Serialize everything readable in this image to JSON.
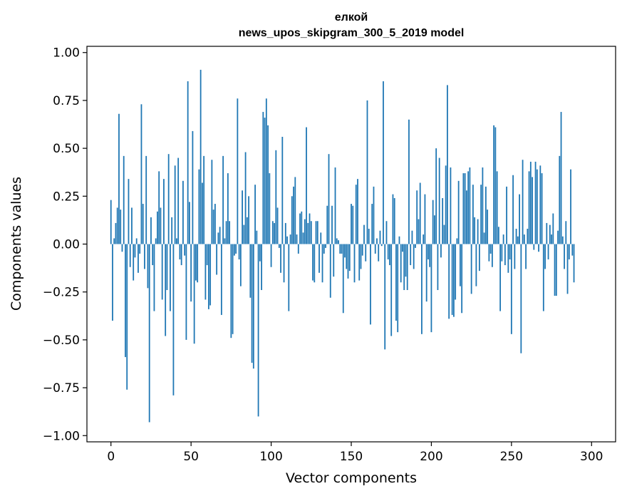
{
  "chart_data": {
    "type": "bar",
    "title_line1": "елкой",
    "title_line2": "news_upos_skipgram_300_5_2019 model",
    "xlabel": "Vector components",
    "ylabel": "Components values",
    "xlim": [
      -15,
      315
    ],
    "ylim": [
      -1.0325,
      1.0325
    ],
    "xticks": [
      0,
      50,
      100,
      150,
      200,
      250,
      300
    ],
    "xtick_labels": [
      "0",
      "50",
      "100",
      "150",
      "200",
      "250",
      "300"
    ],
    "yticks": [
      -1.0,
      -0.75,
      -0.5,
      -0.25,
      0.0,
      0.25,
      0.5,
      0.75,
      1.0
    ],
    "ytick_labels": [
      "−1.00",
      "−0.75",
      "−0.50",
      "−0.25",
      "0.00",
      "0.25",
      "0.50",
      "0.75",
      "1.00"
    ],
    "bar_color": "#1f77b4",
    "values": [
      0.23,
      -0.4,
      0.03,
      0.11,
      0.19,
      0.68,
      0.18,
      -0.04,
      0.46,
      -0.59,
      -0.76,
      0.34,
      -0.12,
      0.19,
      -0.19,
      -0.07,
      0.03,
      -0.15,
      -0.05,
      0.73,
      0.21,
      -0.13,
      0.46,
      -0.23,
      -0.93,
      0.14,
      -0.11,
      -0.35,
      0.03,
      0.17,
      0.38,
      0.19,
      -0.29,
      0.34,
      -0.48,
      -0.24,
      0.47,
      -0.35,
      0.14,
      -0.79,
      0.41,
      0.03,
      0.45,
      -0.08,
      -0.11,
      0.33,
      -0.06,
      -0.5,
      0.85,
      0.22,
      -0.3,
      0.59,
      -0.52,
      -0.19,
      -0.2,
      0.39,
      0.91,
      0.32,
      0.46,
      -0.29,
      -0.11,
      -0.34,
      -0.32,
      0.44,
      0.18,
      0.21,
      -0.16,
      0.06,
      0.09,
      -0.37,
      0.46,
      0.03,
      0.12,
      0.37,
      0.12,
      -0.49,
      -0.47,
      -0.06,
      -0.05,
      0.76,
      -0.08,
      -0.22,
      0.28,
      0.1,
      0.48,
      0.14,
      0.25,
      -0.28,
      -0.62,
      -0.65,
      0.31,
      0.07,
      -0.9,
      -0.09,
      -0.24,
      0.69,
      0.66,
      0.76,
      0.62,
      0.37,
      -0.12,
      0.12,
      0.11,
      0.49,
      0.19,
      -0.02,
      -0.15,
      0.56,
      -0.2,
      0.11,
      0.04,
      -0.35,
      0.05,
      0.25,
      0.3,
      0.35,
      0.05,
      -0.05,
      0.16,
      0.17,
      0.06,
      0.13,
      0.61,
      0.11,
      0.16,
      0.12,
      -0.19,
      -0.2,
      0.12,
      0.12,
      -0.15,
      0.06,
      -0.2,
      -0.05,
      -0.02,
      0.2,
      0.47,
      -0.28,
      0.2,
      -0.17,
      0.4,
      0.03,
      0.02,
      -0.05,
      -0.05,
      -0.36,
      -0.07,
      -0.13,
      -0.18,
      -0.14,
      0.21,
      0.2,
      -0.2,
      0.31,
      0.34,
      -0.19,
      -0.13,
      -0.06,
      0.1,
      -0.09,
      0.75,
      0.08,
      -0.42,
      0.21,
      0.3,
      -0.05,
      0.03,
      -0.09,
      0.07,
      -0.01,
      0.85,
      -0.55,
      0.12,
      -0.08,
      -0.11,
      -0.48,
      0.26,
      0.24,
      -0.4,
      -0.46,
      0.04,
      -0.2,
      -0.04,
      -0.24,
      -0.17,
      -0.24,
      0.65,
      -0.11,
      0.07,
      -0.13,
      -0.02,
      0.28,
      0.13,
      0.32,
      -0.47,
      0.05,
      0.26,
      -0.3,
      -0.08,
      -0.12,
      -0.46,
      0.23,
      0.15,
      0.5,
      -0.24,
      0.45,
      -0.07,
      0.24,
      0.1,
      0.41,
      0.83,
      -0.39,
      0.4,
      -0.37,
      -0.38,
      -0.29,
      0.03,
      0.33,
      -0.22,
      -0.36,
      0.37,
      0.37,
      0.28,
      0.38,
      0.4,
      -0.26,
      0.31,
      0.14,
      -0.22,
      0.13,
      -0.14,
      0.31,
      0.4,
      0.06,
      0.3,
      0.18,
      -0.09,
      -0.05,
      -0.12,
      0.62,
      0.61,
      0.38,
      0.09,
      -0.35,
      -0.09,
      0.05,
      -0.11,
      0.3,
      -0.15,
      -0.08,
      -0.47,
      0.36,
      -0.13,
      0.08,
      0.04,
      0.26,
      -0.57,
      0.44,
      0.05,
      -0.13,
      0.08,
      0.38,
      0.43,
      0.35,
      -0.03,
      0.43,
      0.39,
      -0.04,
      0.41,
      0.37,
      -0.35,
      -0.13,
      0.11,
      -0.08,
      0.1,
      0.05,
      0.16,
      -0.27,
      -0.27,
      0.07,
      0.46,
      0.69,
      0.04,
      -0.13,
      0.12,
      -0.26,
      -0.08,
      0.39,
      -0.06,
      -0.2
    ]
  }
}
